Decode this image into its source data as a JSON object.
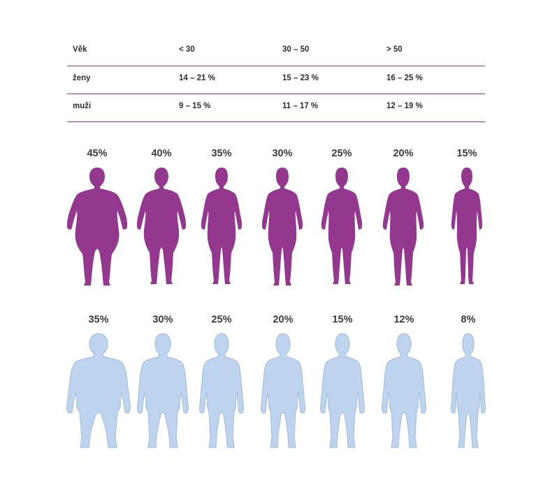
{
  "table": {
    "header": [
      "Věk",
      "< 30",
      "30 – 50",
      "> 50"
    ],
    "rows": [
      [
        "ženy",
        "14 – 21 %",
        "15 – 23 %",
        "16 – 25 %"
      ],
      [
        "muži",
        "9 – 15 %",
        "11 – 17 %",
        "12 – 19 %"
      ]
    ]
  },
  "women": {
    "color": "#93388e",
    "percentages": [
      "45%",
      "40%",
      "35%",
      "30%",
      "25%",
      "20%",
      "15%"
    ]
  },
  "men": {
    "color": "#bdd3ee",
    "percentages": [
      "35%",
      "30%",
      "25%",
      "20%",
      "15%",
      "12%",
      "8%"
    ]
  }
}
